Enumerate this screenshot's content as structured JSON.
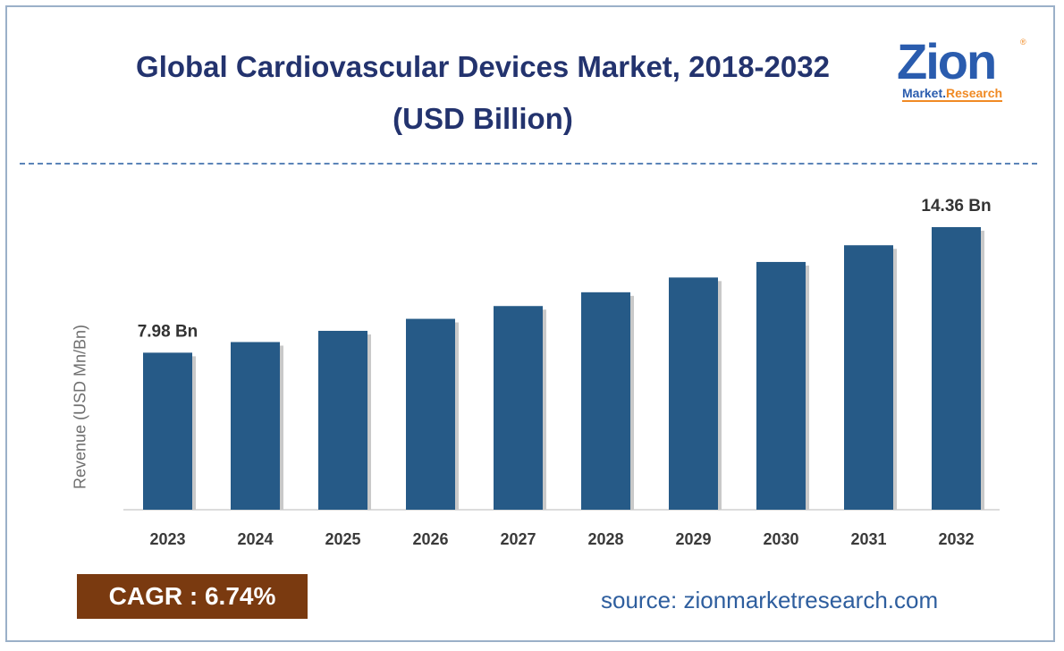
{
  "title_line1": "Global Cardiovascular Devices Market, 2018-2032",
  "title_line2": "(USD Billion)",
  "logo": {
    "word": "Zion",
    "sub_left": "Market.",
    "sub_right": "Research",
    "reg": "®"
  },
  "colors": {
    "bar": "#265a87",
    "title": "#23336e",
    "cagr_bg": "#7a3a10",
    "source": "#2e5e9e"
  },
  "cagr_label": "CAGR :  6.74%",
  "source": "source: zionmarketresearch.com",
  "chart_data": {
    "type": "bar",
    "title": "Global Cardiovascular Devices Market, 2018-2032 (USD Billion)",
    "xlabel": "",
    "ylabel": "Revenue (USD Mn/Bn)",
    "categories": [
      "2023",
      "2024",
      "2025",
      "2026",
      "2027",
      "2028",
      "2029",
      "2030",
      "2031",
      "2032"
    ],
    "values": [
      7.98,
      8.52,
      9.09,
      9.7,
      10.35,
      11.05,
      11.8,
      12.59,
      13.44,
      14.36
    ],
    "data_labels": [
      {
        "category": "2023",
        "text": "7.98 Bn"
      },
      {
        "category": "2032",
        "text": "14.36 Bn"
      }
    ],
    "ylim": [
      0,
      14.36
    ],
    "grid": false,
    "legend": "none"
  }
}
